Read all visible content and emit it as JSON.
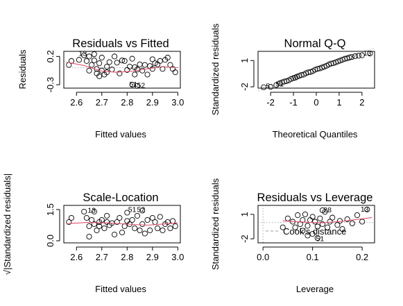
{
  "chart_data": [
    {
      "type": "scatter",
      "title": "Residuals vs Fitted",
      "xlabel": "Fitted values",
      "ylabel": "Residuals",
      "xticks": [
        2.6,
        2.7,
        2.8,
        2.9,
        3.0
      ],
      "yticks": [
        -0.3,
        0.2
      ],
      "xlim": [
        2.55,
        3.01
      ],
      "ylim": [
        -0.36,
        0.29
      ],
      "reference_line": {
        "y": 0,
        "style": "dotted",
        "color": "#9e9e9e"
      },
      "smoother_color": "#df536b",
      "points": [
        [
          2.57,
          0.05
        ],
        [
          2.58,
          0.12
        ],
        [
          2.63,
          0.22
        ],
        [
          2.64,
          0.12
        ],
        [
          2.65,
          0.2
        ],
        [
          2.65,
          -0.05
        ],
        [
          2.66,
          0.05
        ],
        [
          2.67,
          0.24
        ],
        [
          2.67,
          0.13
        ],
        [
          2.68,
          -0.1
        ],
        [
          2.68,
          -0.02
        ],
        [
          2.69,
          -0.15
        ],
        [
          2.69,
          0.08
        ],
        [
          2.7,
          -0.05
        ],
        [
          2.7,
          0.18
        ],
        [
          2.71,
          -0.12
        ],
        [
          2.72,
          0.02
        ],
        [
          2.72,
          -0.08
        ],
        [
          2.73,
          0.1
        ],
        [
          2.74,
          -0.03
        ],
        [
          2.76,
          0.09
        ],
        [
          2.77,
          -0.1
        ],
        [
          2.78,
          0.13
        ],
        [
          2.79,
          0.12
        ],
        [
          2.8,
          -0.04
        ],
        [
          2.81,
          0.02
        ],
        [
          2.82,
          0.16
        ],
        [
          2.83,
          0.01
        ],
        [
          2.83,
          -0.12
        ],
        [
          2.84,
          -0.03
        ],
        [
          2.85,
          0.06
        ],
        [
          2.86,
          -0.05
        ],
        [
          2.87,
          0.05
        ],
        [
          2.88,
          -0.12
        ],
        [
          2.89,
          0.03
        ],
        [
          2.9,
          0.15
        ],
        [
          2.9,
          -0.02
        ],
        [
          2.91,
          0.08
        ],
        [
          2.92,
          0.06
        ],
        [
          2.93,
          0.12
        ],
        [
          2.94,
          -0.02
        ],
        [
          2.95,
          0.14
        ],
        [
          2.96,
          0.18
        ],
        [
          2.97,
          0.05
        ],
        [
          2.98,
          -0.02
        ],
        [
          2.99,
          -0.08
        ],
        [
          2.61,
          0.14
        ],
        [
          2.75,
          0.2
        ],
        [
          2.82,
          -0.3
        ],
        [
          2.84,
          -0.32
        ]
      ],
      "smoother": [
        [
          2.56,
          0.1
        ],
        [
          2.63,
          0.04
        ],
        [
          2.7,
          -0.06
        ],
        [
          2.76,
          -0.08
        ],
        [
          2.82,
          -0.06
        ],
        [
          2.88,
          -0.02
        ],
        [
          2.94,
          0.02
        ],
        [
          3.0,
          0.0
        ]
      ],
      "annotations": [
        {
          "text": "51",
          "x": 2.825,
          "y": -0.3
        },
        {
          "text": "52",
          "x": 2.855,
          "y": -0.32
        },
        {
          "text": "13",
          "x": 2.625,
          "y": 0.25
        }
      ]
    },
    {
      "type": "scatter",
      "title": "Normal Q-Q",
      "xlabel": "Theoretical Quantiles",
      "ylabel": "Standardized residuals",
      "xticks": [
        -2,
        -1,
        0,
        1,
        2
      ],
      "yticks": [
        -2,
        1
      ],
      "xlim": [
        -2.55,
        2.55
      ],
      "ylim": [
        -2.15,
        2.05
      ],
      "reference_line": {
        "from": [
          -2.55,
          -2.45
        ],
        "to": [
          2.55,
          2.45
        ],
        "style": "dotted",
        "color": "#9e9e9e"
      },
      "points": [
        [
          -2.3,
          -2.05
        ],
        [
          -2.0,
          -2.0
        ],
        [
          -1.75,
          -1.8
        ],
        [
          -1.6,
          -1.6
        ],
        [
          -1.5,
          -1.5
        ],
        [
          -1.4,
          -1.4
        ],
        [
          -1.3,
          -1.35
        ],
        [
          -1.2,
          -1.25
        ],
        [
          -1.1,
          -1.1
        ],
        [
          -1.0,
          -1.0
        ],
        [
          -0.92,
          -0.95
        ],
        [
          -0.85,
          -0.85
        ],
        [
          -0.75,
          -0.75
        ],
        [
          -0.65,
          -0.65
        ],
        [
          -0.55,
          -0.6
        ],
        [
          -0.45,
          -0.45
        ],
        [
          -0.35,
          -0.35
        ],
        [
          -0.25,
          -0.3
        ],
        [
          -0.15,
          -0.2
        ],
        [
          -0.05,
          -0.05
        ],
        [
          0.05,
          0.05
        ],
        [
          0.15,
          0.1
        ],
        [
          0.25,
          0.2
        ],
        [
          0.35,
          0.3
        ],
        [
          0.45,
          0.4
        ],
        [
          0.55,
          0.55
        ],
        [
          0.65,
          0.65
        ],
        [
          0.75,
          0.7
        ],
        [
          0.85,
          0.8
        ],
        [
          0.95,
          0.9
        ],
        [
          1.05,
          1.0
        ],
        [
          1.15,
          1.1
        ],
        [
          1.25,
          1.2
        ],
        [
          1.35,
          1.25
        ],
        [
          1.45,
          1.35
        ],
        [
          1.55,
          1.4
        ],
        [
          1.7,
          1.5
        ],
        [
          1.85,
          1.55
        ],
        [
          2.0,
          1.6
        ],
        [
          2.35,
          1.8
        ]
      ],
      "annotations": [
        {
          "text": "5",
          "x": -2.12,
          "y": -1.95
        },
        {
          "text": "51",
          "x": -1.6,
          "y": -1.72
        },
        {
          "text": "13",
          "x": 2.23,
          "y": 1.8
        }
      ]
    },
    {
      "type": "scatter",
      "title": "Scale-Location",
      "xlabel": "Fitted values",
      "ylabel": "√|Standardized residuals|",
      "xticks": [
        2.6,
        2.7,
        2.8,
        2.9,
        3.0
      ],
      "yticks": [
        0.0,
        1.5
      ],
      "xlim": [
        2.55,
        3.01
      ],
      "ylim": [
        -0.1,
        1.7
      ],
      "smoother_color": "#df536b",
      "points": [
        [
          2.57,
          0.9
        ],
        [
          2.58,
          1.1
        ],
        [
          2.63,
          1.4
        ],
        [
          2.64,
          1.1
        ],
        [
          2.65,
          0.7
        ],
        [
          2.65,
          0.2
        ],
        [
          2.66,
          1.0
        ],
        [
          2.67,
          1.4
        ],
        [
          2.67,
          0.8
        ],
        [
          2.68,
          0.5
        ],
        [
          2.69,
          0.7
        ],
        [
          2.69,
          0.9
        ],
        [
          2.7,
          1.0
        ],
        [
          2.71,
          0.6
        ],
        [
          2.72,
          0.9
        ],
        [
          2.72,
          1.2
        ],
        [
          2.73,
          0.75
        ],
        [
          2.74,
          0.85
        ],
        [
          2.76,
          0.9
        ],
        [
          2.77,
          1.1
        ],
        [
          2.78,
          0.4
        ],
        [
          2.79,
          0.7
        ],
        [
          2.8,
          0.95
        ],
        [
          2.81,
          0.8
        ],
        [
          2.82,
          1.0
        ],
        [
          2.83,
          0.6
        ],
        [
          2.84,
          1.2
        ],
        [
          2.85,
          0.5
        ],
        [
          2.86,
          0.8
        ],
        [
          2.87,
          0.35
        ],
        [
          2.88,
          1.0
        ],
        [
          2.89,
          0.5
        ],
        [
          2.9,
          1.1
        ],
        [
          2.91,
          0.9
        ],
        [
          2.92,
          0.6
        ],
        [
          2.93,
          1.15
        ],
        [
          2.94,
          0.5
        ],
        [
          2.95,
          0.8
        ],
        [
          2.96,
          0.9
        ],
        [
          2.97,
          0.6
        ],
        [
          2.98,
          0.95
        ],
        [
          2.99,
          0.7
        ],
        [
          2.75,
          0.3
        ],
        [
          2.8,
          1.35
        ],
        [
          2.86,
          1.45
        ]
      ],
      "smoother": [
        [
          2.56,
          0.82
        ],
        [
          2.64,
          0.88
        ],
        [
          2.72,
          0.86
        ],
        [
          2.8,
          0.8
        ],
        [
          2.88,
          0.75
        ],
        [
          2.96,
          0.82
        ],
        [
          3.0,
          0.86
        ]
      ],
      "annotations": [
        {
          "text": "13",
          "x": 2.66,
          "y": 1.45
        },
        {
          "text": "51",
          "x": 2.82,
          "y": 1.48
        },
        {
          "text": "52",
          "x": 2.855,
          "y": 1.48
        }
      ]
    },
    {
      "type": "scatter",
      "title": "Residuals vs Leverage",
      "xlabel": "Leverage",
      "ylabel": "Standardized residuals",
      "xticks": [
        0.0,
        0.1,
        0.2
      ],
      "yticks": [
        -2,
        1
      ],
      "xlim": [
        -0.01,
        0.225
      ],
      "ylim": [
        -2.5,
        2.1
      ],
      "reference_line": {
        "y": 0,
        "style": "dotted",
        "color": "#9e9e9e"
      },
      "smoother_color": "#df536b",
      "legend": {
        "text": "Cook's distance",
        "position": "bottom-right",
        "line_style": "dashed"
      },
      "points": [
        [
          0.04,
          -0.6
        ],
        [
          0.05,
          0.5
        ],
        [
          0.06,
          0.1
        ],
        [
          0.065,
          -0.6
        ],
        [
          0.07,
          0.9
        ],
        [
          0.075,
          -0.2
        ],
        [
          0.08,
          0.3
        ],
        [
          0.08,
          -1.0
        ],
        [
          0.085,
          1.0
        ],
        [
          0.09,
          -0.4
        ],
        [
          0.095,
          0.3
        ],
        [
          0.1,
          -1.4
        ],
        [
          0.1,
          0.7
        ],
        [
          0.105,
          0.1
        ],
        [
          0.11,
          -0.5
        ],
        [
          0.115,
          0.5
        ],
        [
          0.12,
          -0.2
        ],
        [
          0.125,
          1.3
        ],
        [
          0.13,
          -0.6
        ],
        [
          0.135,
          0.1
        ],
        [
          0.14,
          0.6
        ],
        [
          0.15,
          -0.3
        ],
        [
          0.155,
          0.2
        ],
        [
          0.16,
          -0.8
        ],
        [
          0.17,
          0.4
        ],
        [
          0.18,
          -0.1
        ],
        [
          0.19,
          0.9
        ],
        [
          0.2,
          0.1
        ],
        [
          0.11,
          -1.9
        ],
        [
          0.09,
          -1.6
        ],
        [
          0.21,
          1.6
        ],
        [
          0.12,
          1.5
        ]
      ],
      "smoother": [
        [
          0.04,
          0.2
        ],
        [
          0.08,
          0.05
        ],
        [
          0.12,
          -0.05
        ],
        [
          0.16,
          0.15
        ],
        [
          0.22,
          0.6
        ]
      ],
      "annotations": [
        {
          "text": "13",
          "x": 0.205,
          "y": 1.6
        },
        {
          "text": "28",
          "x": 0.13,
          "y": 1.5
        },
        {
          "text": "51",
          "x": 0.115,
          "y": -2.05
        }
      ]
    }
  ]
}
